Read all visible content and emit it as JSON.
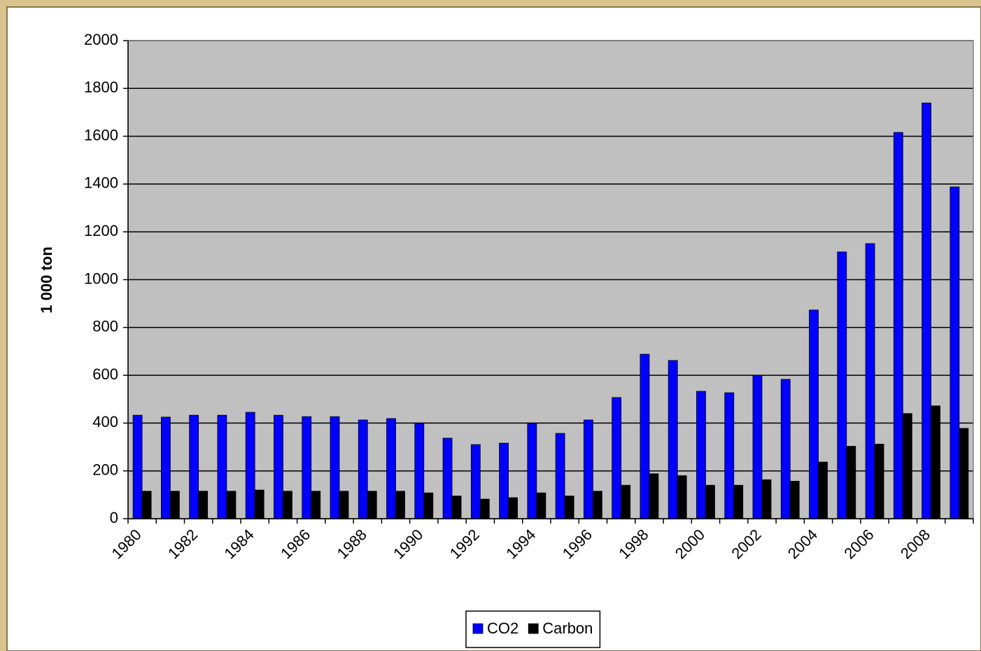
{
  "chart_data": {
    "type": "bar",
    "y_label": "1 000 ton",
    "categories": [
      "1980",
      null,
      "1982",
      null,
      "1984",
      null,
      "1986",
      null,
      "1988",
      null,
      "1990",
      null,
      "1992",
      null,
      "1994",
      null,
      "1996",
      null,
      "1998",
      null,
      "2000",
      null,
      "2002",
      null,
      "2004",
      null,
      "2006",
      null,
      "2008",
      null
    ],
    "series": [
      {
        "name": "CO2",
        "color": "#0000ff",
        "values": [
          433,
          425,
          433,
          433,
          445,
          433,
          427,
          427,
          413,
          419,
          398,
          337,
          310,
          316,
          398,
          357,
          413,
          507,
          688,
          662,
          533,
          527,
          600,
          583,
          873,
          1116,
          1151,
          1616,
          1739,
          1388
        ]
      },
      {
        "name": "Carbon",
        "color": "#000000",
        "values": [
          115,
          115,
          115,
          115,
          120,
          115,
          115,
          115,
          115,
          115,
          108,
          95,
          82,
          88,
          108,
          95,
          115,
          140,
          188,
          180,
          140,
          140,
          163,
          157,
          237,
          303,
          312,
          440,
          472,
          378
        ]
      }
    ],
    "ylim": [
      0,
      2000
    ],
    "yticks": [
      0,
      200,
      400,
      600,
      800,
      1000,
      1200,
      1400,
      1600,
      1800,
      2000
    ],
    "grid": true,
    "legend": "bottom"
  }
}
